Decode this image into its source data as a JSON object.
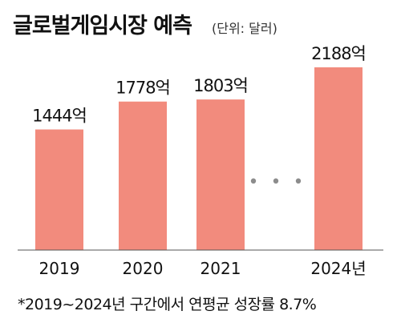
{
  "header": {
    "title": "글로벌게임시장 예측",
    "unit": "(단위: 달러)"
  },
  "footnote": "*2019~2024년 구간에서 연평균 성장률 8.7%",
  "colors": {
    "bar": "#f28b7d",
    "ellipsis": "#8c8c8c",
    "baseline": "#555555"
  },
  "chart_data": {
    "type": "bar",
    "title": "글로벌게임시장 예측",
    "categories": [
      "2019",
      "2020",
      "2021",
      "2024년"
    ],
    "values": [
      1444,
      1778,
      1803,
      2188
    ],
    "data_labels": [
      "1444억",
      "1778억",
      "1803억",
      "2188억"
    ],
    "gap_after_index": 2,
    "gap_marker": "• • •",
    "ylim": [
      0,
      2188
    ],
    "grid": false,
    "legend": "none"
  }
}
